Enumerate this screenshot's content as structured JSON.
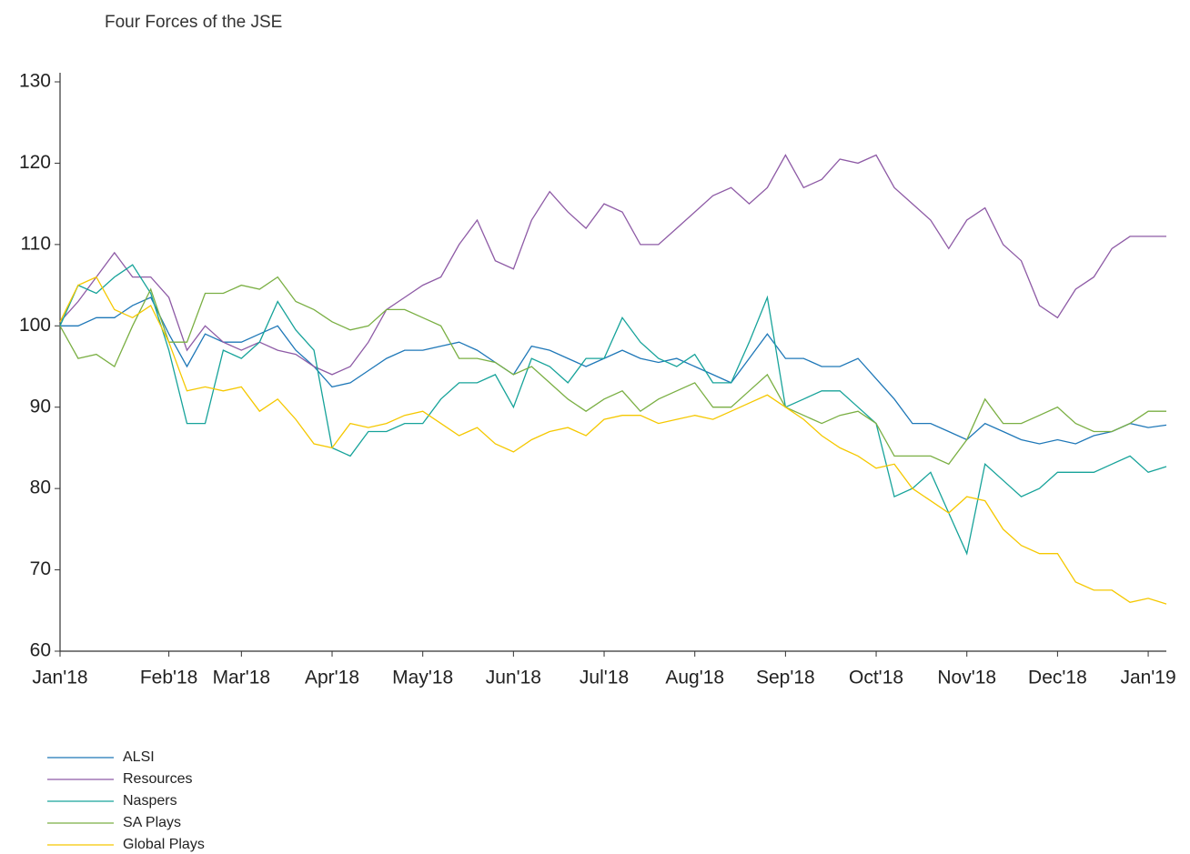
{
  "chart_data": {
    "type": "line",
    "title": "Four Forces of the JSE",
    "categories": [
      "Jan'18",
      null,
      null,
      null,
      null,
      null,
      "Feb'18",
      null,
      null,
      null,
      "Mar'18",
      null,
      null,
      null,
      null,
      "Apr'18",
      null,
      null,
      null,
      null,
      "May'18",
      null,
      null,
      null,
      null,
      "Jun'18",
      null,
      null,
      null,
      null,
      "Jul'18",
      null,
      null,
      null,
      null,
      "Aug'18",
      null,
      null,
      null,
      null,
      "Sep'18",
      null,
      null,
      null,
      null,
      "Oct'18",
      null,
      null,
      null,
      null,
      "Nov'18",
      null,
      null,
      null,
      null,
      "Dec'18",
      null,
      null,
      null,
      null,
      "Jan'19",
      null
    ],
    "series": [
      {
        "name": "ALSI",
        "color": "#1f78b8",
        "values": [
          100,
          100,
          101,
          101,
          102.5,
          103.5,
          99,
          95,
          99,
          98,
          98,
          99,
          100,
          97,
          95,
          92.5,
          93,
          94.5,
          96,
          97,
          97,
          97.5,
          98,
          97,
          95.5,
          94,
          97.5,
          97,
          96,
          95,
          96,
          97,
          96,
          95.5,
          96,
          95,
          94,
          93,
          96,
          99,
          96,
          96,
          95,
          95,
          96,
          93.5,
          91,
          88,
          88,
          87,
          86,
          88,
          87,
          86,
          85.5,
          86,
          85.5,
          86.5,
          87,
          88,
          87.5,
          87.8
        ]
      },
      {
        "name": "Resources",
        "color": "#8e5ba6",
        "values": [
          100.5,
          103,
          106,
          109,
          106,
          106,
          103.5,
          97,
          100,
          98,
          97,
          98,
          97,
          96.5,
          95,
          94,
          95,
          98,
          102,
          103.5,
          105,
          106,
          110,
          113,
          108,
          107,
          113,
          116.5,
          114,
          112,
          115,
          114,
          110,
          110,
          112,
          114,
          116,
          117,
          115,
          117,
          121,
          117,
          118,
          120.5,
          120,
          121,
          117,
          115,
          113,
          109.5,
          113,
          114.5,
          110,
          108,
          102.5,
          101,
          104.5,
          106,
          109.5,
          111,
          111,
          111
        ]
      },
      {
        "name": "Naspers",
        "color": "#17a39a",
        "values": [
          100,
          105,
          104,
          106,
          107.5,
          104,
          97,
          88,
          88,
          97,
          96,
          98,
          103,
          99.5,
          97,
          85,
          84,
          87,
          87,
          88,
          88,
          91,
          93,
          93,
          94,
          90,
          96,
          95,
          93,
          96,
          96,
          101,
          98,
          96,
          95,
          96.5,
          93,
          93,
          98,
          103.5,
          90,
          91,
          92,
          92,
          90,
          88,
          79,
          80,
          82,
          77,
          72,
          83,
          81,
          79,
          80,
          82,
          82,
          82,
          83,
          84,
          82,
          82.7
        ]
      },
      {
        "name": "SA Plays",
        "color": "#7aaf43",
        "values": [
          100,
          96,
          96.5,
          95,
          100,
          104.5,
          98,
          98,
          104,
          104,
          105,
          104.5,
          106,
          103,
          102,
          100.5,
          99.5,
          100,
          102,
          102,
          101,
          100,
          96,
          96,
          95.5,
          94,
          95,
          93,
          91,
          89.5,
          91,
          92,
          89.5,
          91,
          92,
          93,
          90,
          90,
          92,
          94,
          90,
          89,
          88,
          89,
          89.5,
          88,
          84,
          84,
          84,
          83,
          86,
          91,
          88,
          88,
          89,
          90,
          88,
          87,
          87,
          88,
          89.5,
          89.5
        ]
      },
      {
        "name": "Global Plays",
        "color": "#f5c800",
        "values": [
          100.5,
          105,
          106,
          102,
          101,
          102.5,
          98,
          92,
          92.5,
          92,
          92.5,
          89.5,
          91,
          88.5,
          85.5,
          85,
          88,
          87.5,
          88,
          89,
          89.5,
          88,
          86.5,
          87.5,
          85.5,
          84.5,
          86,
          87,
          87.5,
          86.5,
          88.5,
          89,
          89,
          88,
          88.5,
          89,
          88.5,
          89.5,
          90.5,
          91.5,
          90,
          88.5,
          86.5,
          85,
          84,
          82.5,
          83,
          80,
          78.5,
          77,
          79,
          78.5,
          75,
          73,
          72,
          72,
          68.5,
          67.5,
          67.5,
          66,
          66.5,
          65.8
        ]
      }
    ],
    "ylim": [
      60,
      130
    ],
    "yticks": [
      60,
      70,
      80,
      90,
      100,
      110,
      120,
      130
    ],
    "legend": "bottom-left"
  }
}
